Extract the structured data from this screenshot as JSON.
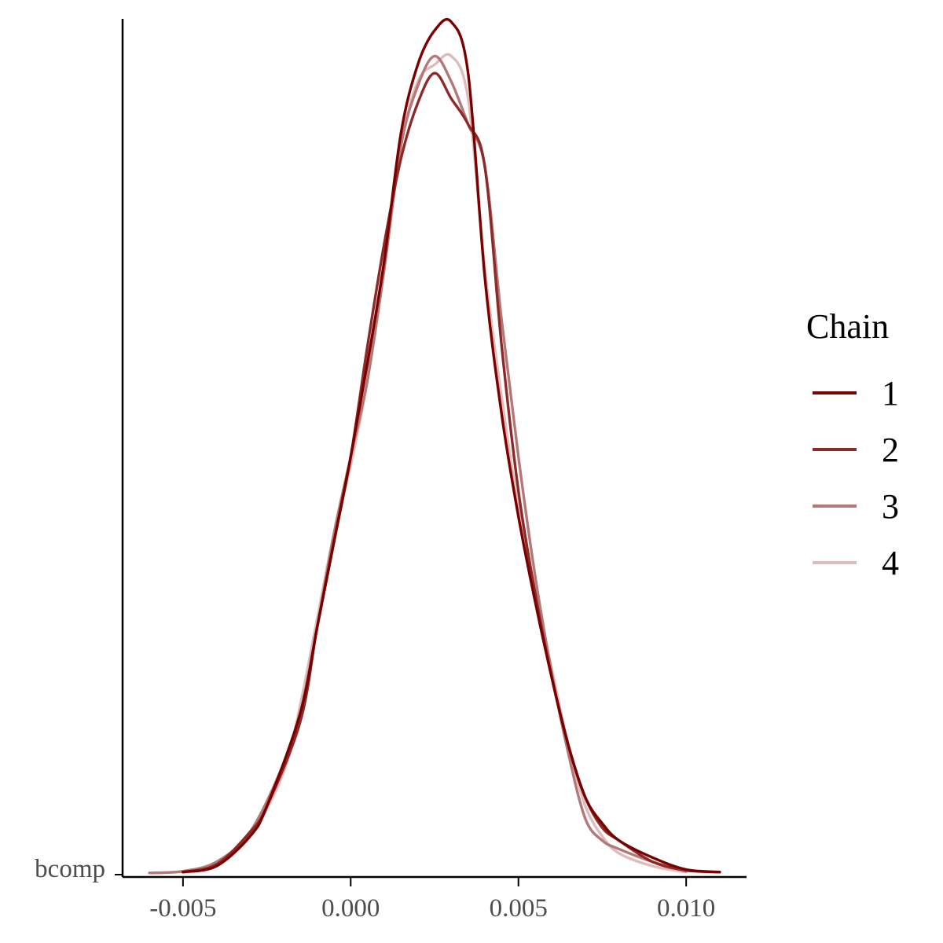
{
  "chart_data": {
    "type": "line",
    "title": "",
    "xlabel": "",
    "ylabel": "",
    "category_label": "bcomp",
    "xlim": [
      -0.0068,
      0.0118
    ],
    "x_ticks": [
      {
        "value": -0.005,
        "label": "-0.005"
      },
      {
        "value": 0.0,
        "label": "0.000"
      },
      {
        "value": 0.005,
        "label": "0.005"
      },
      {
        "value": 0.01,
        "label": "0.010"
      }
    ],
    "y_normalized_range": [
      0,
      1
    ],
    "grid": false,
    "legend": {
      "title": "Chain",
      "placement": "right"
    },
    "series": [
      {
        "name": "1",
        "color": "#7a0000",
        "points": [
          [
            -0.005,
            0.003
          ],
          [
            -0.004,
            0.01
          ],
          [
            -0.003,
            0.045
          ],
          [
            -0.0025,
            0.08
          ],
          [
            -0.0015,
            0.19
          ],
          [
            -0.001,
            0.29
          ],
          [
            -0.0005,
            0.39
          ],
          [
            0.0,
            0.49
          ],
          [
            0.0005,
            0.6
          ],
          [
            0.001,
            0.72
          ],
          [
            0.0015,
            0.87
          ],
          [
            0.002,
            0.95
          ],
          [
            0.0025,
            0.99
          ],
          [
            0.003,
            1.0
          ],
          [
            0.0035,
            0.94
          ],
          [
            0.004,
            0.7
          ],
          [
            0.0045,
            0.54
          ],
          [
            0.005,
            0.42
          ],
          [
            0.0055,
            0.32
          ],
          [
            0.006,
            0.23
          ],
          [
            0.0065,
            0.15
          ],
          [
            0.007,
            0.09
          ],
          [
            0.0075,
            0.06
          ],
          [
            0.008,
            0.04
          ],
          [
            0.009,
            0.02
          ],
          [
            0.01,
            0.006
          ],
          [
            0.011,
            0.003
          ]
        ]
      },
      {
        "name": "2",
        "color": "#8c2a2a",
        "points": [
          [
            -0.005,
            0.003
          ],
          [
            -0.004,
            0.012
          ],
          [
            -0.003,
            0.05
          ],
          [
            -0.0025,
            0.08
          ],
          [
            -0.0015,
            0.18
          ],
          [
            -0.001,
            0.29
          ],
          [
            -0.0005,
            0.39
          ],
          [
            0.0,
            0.49
          ],
          [
            0.0005,
            0.62
          ],
          [
            0.001,
            0.74
          ],
          [
            0.0015,
            0.84
          ],
          [
            0.002,
            0.905
          ],
          [
            0.0025,
            0.94
          ],
          [
            0.003,
            0.91
          ],
          [
            0.0035,
            0.88
          ],
          [
            0.004,
            0.83
          ],
          [
            0.0045,
            0.62
          ],
          [
            0.005,
            0.45
          ],
          [
            0.0055,
            0.33
          ],
          [
            0.006,
            0.23
          ],
          [
            0.0065,
            0.15
          ],
          [
            0.007,
            0.09
          ],
          [
            0.0075,
            0.055
          ],
          [
            0.008,
            0.04
          ],
          [
            0.009,
            0.015
          ],
          [
            0.01,
            0.005
          ],
          [
            0.011,
            0.003
          ]
        ]
      },
      {
        "name": "3",
        "color": "#b57878",
        "points": [
          [
            -0.006,
            0.002
          ],
          [
            -0.005,
            0.004
          ],
          [
            -0.004,
            0.015
          ],
          [
            -0.003,
            0.05
          ],
          [
            -0.002,
            0.13
          ],
          [
            -0.0015,
            0.19
          ],
          [
            -0.001,
            0.29
          ],
          [
            -0.0005,
            0.4
          ],
          [
            0.0,
            0.49
          ],
          [
            0.0005,
            0.58
          ],
          [
            0.001,
            0.71
          ],
          [
            0.0015,
            0.855
          ],
          [
            0.002,
            0.925
          ],
          [
            0.0025,
            0.96
          ],
          [
            0.003,
            0.93
          ],
          [
            0.0035,
            0.88
          ],
          [
            0.004,
            0.83
          ],
          [
            0.0045,
            0.65
          ],
          [
            0.005,
            0.49
          ],
          [
            0.0055,
            0.35
          ],
          [
            0.006,
            0.235
          ],
          [
            0.0065,
            0.14
          ],
          [
            0.007,
            0.065
          ],
          [
            0.0075,
            0.04
          ],
          [
            0.008,
            0.03
          ],
          [
            0.009,
            0.015
          ],
          [
            0.01,
            0.004
          ]
        ]
      },
      {
        "name": "4",
        "color": "#dfbcbc",
        "points": [
          [
            -0.006,
            0.002
          ],
          [
            -0.005,
            0.004
          ],
          [
            -0.004,
            0.014
          ],
          [
            -0.003,
            0.045
          ],
          [
            -0.002,
            0.12
          ],
          [
            -0.0015,
            0.2
          ],
          [
            -0.001,
            0.3
          ],
          [
            -0.0005,
            0.4
          ],
          [
            0.0,
            0.48
          ],
          [
            0.0005,
            0.58
          ],
          [
            0.001,
            0.71
          ],
          [
            0.0015,
            0.855
          ],
          [
            0.002,
            0.93
          ],
          [
            0.0025,
            0.95
          ],
          [
            0.003,
            0.96
          ],
          [
            0.0035,
            0.91
          ],
          [
            0.004,
            0.71
          ],
          [
            0.0045,
            0.56
          ],
          [
            0.005,
            0.43
          ],
          [
            0.0055,
            0.33
          ],
          [
            0.006,
            0.24
          ],
          [
            0.0065,
            0.15
          ],
          [
            0.007,
            0.08
          ],
          [
            0.0075,
            0.045
          ],
          [
            0.008,
            0.025
          ],
          [
            0.009,
            0.01
          ],
          [
            0.01,
            0.003
          ]
        ]
      }
    ]
  }
}
